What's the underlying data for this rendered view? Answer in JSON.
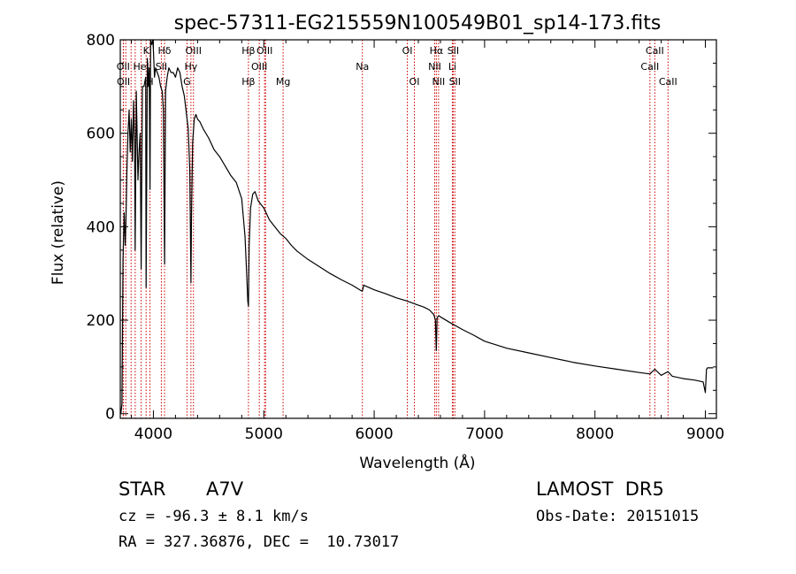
{
  "chart_data": {
    "type": "line",
    "title": "spec-57311-EG215559N100549B01_sp14-173.fits",
    "xlabel": "Wavelength (Å)",
    "ylabel": "Flux (relative)",
    "xlim": [
      3700,
      9100
    ],
    "ylim": [
      -10,
      800
    ],
    "xticks": [
      4000,
      5000,
      6000,
      7000,
      8000,
      9000
    ],
    "yticks": [
      0,
      200,
      400,
      600,
      800
    ],
    "grid": false,
    "line_color": "#000000",
    "marker_color": "#cc0000",
    "series": [
      {
        "x": [
          3705,
          3715,
          3725,
          3735,
          3745,
          3752,
          3760,
          3770,
          3780,
          3790,
          3800,
          3810,
          3820,
          3830,
          3835,
          3845,
          3860,
          3870,
          3880,
          3889,
          3900,
          3915,
          3930,
          3934,
          3945,
          3955,
          3962,
          3969,
          3975,
          3985,
          3995,
          4000,
          4010,
          4020,
          4035,
          4050,
          4065,
          4080,
          4090,
          4101,
          4110,
          4125,
          4140,
          4160,
          4180,
          4200,
          4220,
          4240,
          4260,
          4280,
          4300,
          4315,
          4330,
          4340,
          4345,
          4355,
          4370,
          4385,
          4400,
          4420,
          4450,
          4500,
          4550,
          4600,
          4650,
          4700,
          4750,
          4800,
          4830,
          4845,
          4855,
          4861,
          4867,
          4880,
          4900,
          4920,
          4950,
          5000,
          5050,
          5100,
          5150,
          5200,
          5250,
          5300,
          5400,
          5500,
          5600,
          5700,
          5800,
          5890,
          5896,
          5905,
          6000,
          6100,
          6200,
          6300,
          6400,
          6450,
          6500,
          6540,
          6555,
          6563,
          6570,
          6585,
          6600,
          6700,
          6800,
          6900,
          7000,
          7200,
          7400,
          7600,
          7800,
          8000,
          8200,
          8400,
          8498,
          8542,
          8600,
          8662,
          8700,
          8800,
          8900,
          8980,
          9000,
          9010,
          9020,
          9050,
          9070
        ],
        "y": [
          0,
          20,
          330,
          430,
          360,
          420,
          520,
          600,
          650,
          560,
          630,
          540,
          670,
          580,
          350,
          690,
          500,
          560,
          600,
          310,
          700,
          700,
          720,
          270,
          760,
          700,
          740,
          480,
          820,
          790,
          800,
          780,
          720,
          740,
          730,
          720,
          700,
          690,
          650,
          320,
          690,
          720,
          740,
          730,
          730,
          720,
          740,
          730,
          700,
          680,
          640,
          610,
          520,
          280,
          420,
          580,
          630,
          640,
          630,
          625,
          610,
          590,
          565,
          550,
          530,
          510,
          495,
          460,
          380,
          300,
          240,
          230,
          360,
          440,
          470,
          475,
          455,
          440,
          415,
          400,
          385,
          375,
          360,
          348,
          330,
          315,
          300,
          287,
          275,
          262,
          265,
          275,
          265,
          257,
          248,
          241,
          232,
          228,
          222,
          212,
          200,
          135,
          205,
          210,
          207,
          193,
          180,
          168,
          155,
          140,
          130,
          120,
          110,
          102,
          95,
          88,
          85,
          95,
          82,
          90,
          80,
          75,
          72,
          68,
          45,
          95,
          98,
          98,
          98
        ]
      }
    ],
    "lines": [
      {
        "label": "Hβ",
        "row": 0,
        "x": 4861
      },
      {
        "label": "K",
        "row": 0,
        "x": 3934
      },
      {
        "label": "Hδ",
        "row": 0,
        "x": 4101
      },
      {
        "label": "OIII",
        "row": 0,
        "x": 4363
      },
      {
        "label": "OIII",
        "row": 0,
        "x": 5007
      },
      {
        "label": "OI",
        "row": 0,
        "x": 6300
      },
      {
        "label": "Hα",
        "row": 0,
        "x": 6563
      },
      {
        "label": "SII",
        "row": 0,
        "x": 6716
      },
      {
        "label": "CaII",
        "row": 0,
        "x": 8542
      },
      {
        "label": "OII",
        "row": 1,
        "x": 3727
      },
      {
        "label": "HeI",
        "row": 1,
        "x": 3889
      },
      {
        "label": "SII",
        "row": 1,
        "x": 4072
      },
      {
        "label": "Hγ",
        "row": 1,
        "x": 4340
      },
      {
        "label": "OIII",
        "row": 1,
        "x": 4959
      },
      {
        "label": "Na",
        "row": 1,
        "x": 5893
      },
      {
        "label": "NII",
        "row": 1,
        "x": 6548
      },
      {
        "label": "Li",
        "row": 1,
        "x": 6708
      },
      {
        "label": "CaII",
        "row": 1,
        "x": 8498
      },
      {
        "label": "OII",
        "row": 2,
        "x": 3729
      },
      {
        "label": "H",
        "row": 2,
        "x": 3969
      },
      {
        "label": "G",
        "row": 2,
        "x": 4304
      },
      {
        "label": "Hβ",
        "row": 2,
        "x": 4861
      },
      {
        "label": "Mg",
        "row": 2,
        "x": 5175
      },
      {
        "label": "OI",
        "row": 2,
        "x": 6364
      },
      {
        "label": "NII",
        "row": 2,
        "x": 6583
      },
      {
        "label": "SII",
        "row": 2,
        "x": 6731
      },
      {
        "label": "CaII",
        "row": 2,
        "x": 8662
      }
    ],
    "extra_marker_x": [
      3750,
      3798,
      3835,
      3889,
      4340,
      5016,
      6563,
      8498
    ]
  },
  "info": {
    "object_type": "STAR",
    "subclass": "A7V",
    "survey": "LAMOST  DR5",
    "cz": "cz = -96.3 ± 8.1 km/s",
    "obs_date": "Obs-Date: 20151015",
    "coords": "RA = 327.36876, DEC =  10.73017"
  }
}
